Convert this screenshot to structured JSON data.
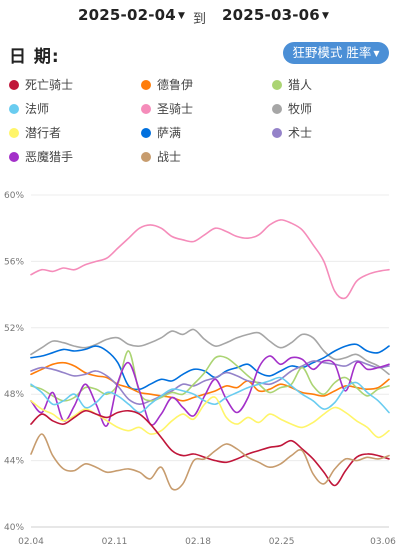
{
  "header": {
    "start_date": "2025-02-04",
    "separator": "到",
    "end_date": "2025-03-06",
    "title": "日  期:",
    "mode_label": "狂野模式 胜率",
    "dropdown_icon": "caret-down-icon"
  },
  "legend": [
    {
      "name": "死亡骑士",
      "color": "#c0163a"
    },
    {
      "name": "德鲁伊",
      "color": "#ff7d0a"
    },
    {
      "name": "猎人",
      "color": "#abd473"
    },
    {
      "name": "法师",
      "color": "#69ccf0"
    },
    {
      "name": "圣骑士",
      "color": "#f58cba"
    },
    {
      "name": "牧师",
      "color": "#a6a6a6"
    },
    {
      "name": "潜行者",
      "color": "#fff569"
    },
    {
      "name": "萨满",
      "color": "#0070de"
    },
    {
      "name": "术士",
      "color": "#9482c9"
    },
    {
      "name": "恶魔猎手",
      "color": "#a330c9"
    },
    {
      "name": "战士",
      "color": "#c79c6e"
    }
  ],
  "chart_data": {
    "type": "line",
    "ylim": [
      40,
      60
    ],
    "yticks": [
      "40%",
      "44%",
      "48%",
      "52%",
      "56%",
      "60%"
    ],
    "x_range": [
      0,
      30
    ],
    "x_ticks": [
      {
        "day": 0,
        "label": "02.04"
      },
      {
        "day": 7,
        "label": "02.11"
      },
      {
        "day": 14,
        "label": "02.18"
      },
      {
        "day": 21,
        "label": "02.25"
      },
      {
        "day": 29.5,
        "label": "03.06"
      }
    ],
    "series": [
      {
        "name": "圣骑士",
        "values": [
          55.2,
          55.5,
          55.4,
          55.6,
          55.5,
          55.8,
          56.0,
          56.2,
          56.8,
          57.4,
          58.0,
          58.2,
          58.0,
          57.5,
          57.3,
          57.2,
          57.6,
          58.0,
          57.8,
          57.5,
          57.4,
          57.6,
          58.2,
          58.5,
          58.3,
          57.9,
          57.0,
          56.0,
          54.2,
          53.8,
          54.8,
          55.2,
          55.4,
          55.5
        ]
      },
      {
        "name": "牧师",
        "values": [
          50.4,
          50.8,
          51.2,
          51.1,
          50.9,
          50.8,
          51.0,
          51.3,
          51.4,
          51.0,
          50.9,
          51.1,
          51.4,
          51.8,
          51.6,
          51.9,
          51.3,
          50.9,
          51.1,
          51.4,
          51.6,
          51.7,
          51.2,
          50.8,
          51.1,
          51.6,
          51.4,
          50.6,
          50.1,
          50.2,
          50.4,
          50.0,
          49.7,
          49.2
        ]
      },
      {
        "name": "萨满",
        "values": [
          50.2,
          50.3,
          50.5,
          50.7,
          50.6,
          50.7,
          50.9,
          50.6,
          49.9,
          48.5,
          48.3,
          48.6,
          48.9,
          48.8,
          49.2,
          49.5,
          49.4,
          49.0,
          49.4,
          49.6,
          49.8,
          49.3,
          49.1,
          49.4,
          49.7,
          49.6,
          49.9,
          50.2,
          50.6,
          50.9,
          51.0,
          50.6,
          50.5,
          50.9
        ]
      },
      {
        "name": "德鲁伊",
        "values": [
          49.2,
          49.5,
          49.8,
          49.9,
          49.7,
          49.3,
          49.1,
          49.0,
          48.6,
          48.4,
          48.1,
          48.0,
          47.9,
          47.8,
          47.6,
          47.8,
          48.0,
          48.2,
          48.5,
          48.4,
          48.8,
          48.2,
          48.3,
          48.6,
          48.4,
          48.1,
          48.0,
          47.9,
          48.2,
          48.5,
          48.4,
          48.3,
          48.4,
          48.9
        ]
      },
      {
        "name": "术士",
        "values": [
          49.4,
          49.6,
          49.5,
          49.3,
          49.1,
          49.2,
          49.4,
          49.1,
          48.5,
          47.7,
          47.4,
          47.6,
          47.9,
          48.2,
          48.6,
          48.5,
          48.8,
          49.0,
          49.3,
          49.1,
          48.8,
          48.7,
          48.6,
          48.9,
          49.4,
          49.7,
          50.0,
          49.9,
          49.8,
          49.7,
          50.0,
          49.8,
          49.6,
          49.7
        ]
      },
      {
        "name": "猎人",
        "values": [
          48.5,
          48.3,
          47.9,
          47.6,
          47.8,
          48.4,
          48.3,
          48.0,
          48.6,
          50.6,
          48.1,
          47.6,
          47.8,
          48.1,
          48.0,
          48.6,
          49.3,
          50.2,
          50.2,
          49.7,
          49.1,
          48.6,
          48.1,
          48.4,
          48.6,
          49.6,
          48.5,
          48.0,
          48.7,
          49.0,
          48.4,
          47.9,
          48.3,
          48.5
        ]
      },
      {
        "name": "恶魔猎手",
        "values": [
          47.6,
          46.9,
          48.1,
          46.4,
          47.3,
          48.6,
          47.4,
          46.1,
          48.7,
          49.9,
          48.2,
          46.2,
          46.8,
          47.8,
          47.2,
          46.7,
          47.9,
          48.9,
          47.7,
          46.9,
          47.8,
          49.6,
          50.3,
          49.8,
          50.2,
          50.1,
          49.5,
          50.0,
          49.8,
          48.2,
          49.9,
          49.5,
          49.6,
          49.8
        ]
      },
      {
        "name": "法师",
        "values": [
          48.6,
          48.1,
          47.4,
          47.6,
          48.0,
          47.2,
          47.5,
          48.1,
          47.9,
          47.4,
          46.9,
          47.4,
          47.9,
          48.3,
          48.2,
          48.0,
          47.6,
          47.4,
          47.8,
          48.1,
          48.4,
          48.6,
          48.8,
          49.0,
          48.5,
          48.0,
          47.6,
          47.1,
          47.5,
          48.4,
          48.7,
          48.1,
          47.6,
          46.9
        ]
      },
      {
        "name": "潜行者",
        "values": [
          47.6,
          47.1,
          46.8,
          46.4,
          46.7,
          47.1,
          46.8,
          46.4,
          46.0,
          45.8,
          46.0,
          45.6,
          45.8,
          46.4,
          46.8,
          46.5,
          47.4,
          47.8,
          46.6,
          46.2,
          46.6,
          46.3,
          46.8,
          46.5,
          46.2,
          46.0,
          46.3,
          46.8,
          47.2,
          46.9,
          46.4,
          46.0,
          45.4,
          45.8
        ]
      },
      {
        "name": "死亡骑士",
        "values": [
          46.2,
          46.8,
          46.4,
          46.2,
          46.6,
          47.0,
          46.8,
          46.6,
          46.9,
          47.0,
          46.8,
          46.2,
          45.4,
          44.6,
          44.3,
          44.4,
          44.2,
          44.0,
          43.9,
          44.1,
          44.4,
          44.6,
          44.8,
          44.9,
          45.2,
          44.7,
          44.1,
          43.3,
          42.5,
          43.4,
          44.2,
          44.4,
          44.3,
          44.1
        ]
      },
      {
        "name": "战士",
        "values": [
          44.4,
          45.6,
          44.3,
          43.5,
          43.4,
          43.8,
          43.6,
          43.3,
          43.4,
          43.5,
          43.3,
          42.9,
          43.6,
          42.3,
          42.6,
          44.0,
          44.1,
          44.6,
          45.0,
          44.7,
          44.2,
          43.9,
          43.6,
          43.8,
          44.3,
          44.6,
          43.2,
          42.6,
          43.5,
          44.1,
          44.0,
          44.2,
          44.1,
          44.3
        ]
      }
    ]
  }
}
